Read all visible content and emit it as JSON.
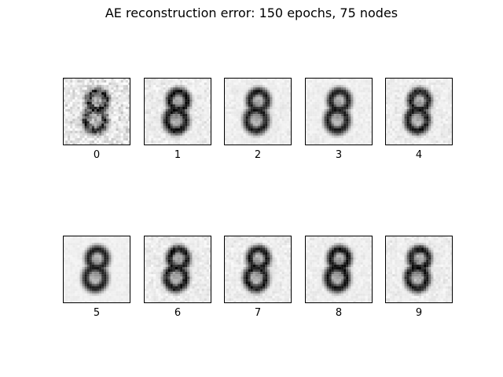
{
  "chart_data": {
    "type": "heatmap",
    "title": "AE reconstruction error: 150 epochs, 75 nodes",
    "colormap": "gray_r",
    "grid": false,
    "panels": [
      {
        "label": "0",
        "noise": 0.85,
        "darkness": 0.8
      },
      {
        "label": "1",
        "noise": 0.35,
        "darkness": 0.95
      },
      {
        "label": "2",
        "noise": 0.2,
        "darkness": 0.9
      },
      {
        "label": "3",
        "noise": 0.15,
        "darkness": 0.9
      },
      {
        "label": "4",
        "noise": 0.3,
        "darkness": 0.9
      },
      {
        "label": "5",
        "noise": 0.05,
        "darkness": 0.9
      },
      {
        "label": "6",
        "noise": 0.35,
        "darkness": 0.92
      },
      {
        "label": "7",
        "noise": 0.3,
        "darkness": 0.92
      },
      {
        "label": "8",
        "noise": 0.2,
        "darkness": 0.95
      },
      {
        "label": "9",
        "noise": 0.3,
        "darkness": 0.92
      }
    ]
  }
}
